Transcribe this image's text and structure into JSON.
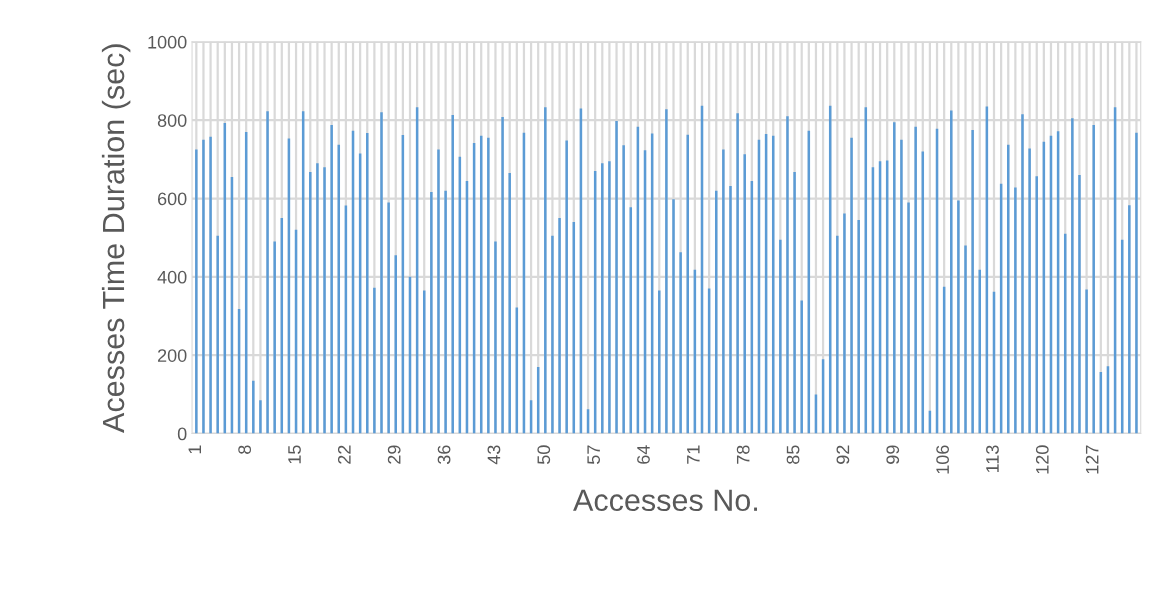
{
  "chart_data": {
    "type": "bar",
    "xlabel": "Accesses No.",
    "ylabel": "Acesses Time Duration (sec)",
    "categories": [
      "1",
      null,
      null,
      null,
      null,
      null,
      null,
      "8",
      null,
      null,
      null,
      null,
      null,
      null,
      "15",
      null,
      null,
      null,
      null,
      null,
      null,
      "22",
      null,
      null,
      null,
      null,
      null,
      null,
      "29",
      null,
      null,
      null,
      null,
      null,
      null,
      "36",
      null,
      null,
      null,
      null,
      null,
      null,
      "43",
      null,
      null,
      null,
      null,
      null,
      null,
      "50",
      null,
      null,
      null,
      null,
      null,
      null,
      "57",
      null,
      null,
      null,
      null,
      null,
      null,
      "64",
      null,
      null,
      null,
      null,
      null,
      null,
      "71",
      null,
      null,
      null,
      null,
      null,
      null,
      "78",
      null,
      null,
      null,
      null,
      null,
      null,
      "85",
      null,
      null,
      null,
      null,
      null,
      null,
      "92",
      null,
      null,
      null,
      null,
      null,
      null,
      "99",
      null,
      null,
      null,
      null,
      null,
      null,
      "106",
      null,
      null,
      null,
      null,
      null,
      null,
      "113",
      null,
      null,
      null,
      null,
      null,
      null,
      "120",
      null,
      null,
      null,
      null,
      null,
      null,
      "127",
      null,
      null,
      null,
      null,
      null,
      null
    ],
    "values": [
      725,
      750,
      758,
      505,
      793,
      655,
      318,
      770,
      135,
      85,
      823,
      490,
      550,
      753,
      520,
      823,
      668,
      690,
      680,
      788,
      737,
      582,
      773,
      715,
      767,
      372,
      820,
      590,
      455,
      762,
      400,
      833,
      365,
      617,
      725,
      620,
      813,
      707,
      645,
      742,
      760,
      755,
      490,
      808,
      665,
      322,
      768,
      85,
      170,
      833,
      505,
      550,
      748,
      540,
      830,
      62,
      670,
      690,
      695,
      798,
      736,
      578,
      783,
      723,
      766,
      365,
      828,
      598,
      463,
      763,
      418,
      837,
      370,
      620,
      725,
      632,
      818,
      713,
      645,
      750,
      765,
      760,
      495,
      810,
      668,
      340,
      773,
      100,
      190,
      837,
      505,
      562,
      755,
      545,
      833,
      680,
      695,
      697,
      795,
      750,
      590,
      783,
      720,
      58,
      778,
      375,
      825,
      595,
      480,
      775,
      418,
      835,
      362,
      638,
      737,
      628,
      815,
      728,
      657,
      745,
      760,
      772,
      510,
      805,
      660,
      368,
      788,
      157,
      172,
      833,
      495,
      583,
      768
    ],
    "color": "#5b9bd5",
    "ylim": [
      0,
      1000
    ],
    "yticks": [
      0,
      200,
      400,
      600,
      800,
      1000
    ],
    "grid": true
  }
}
